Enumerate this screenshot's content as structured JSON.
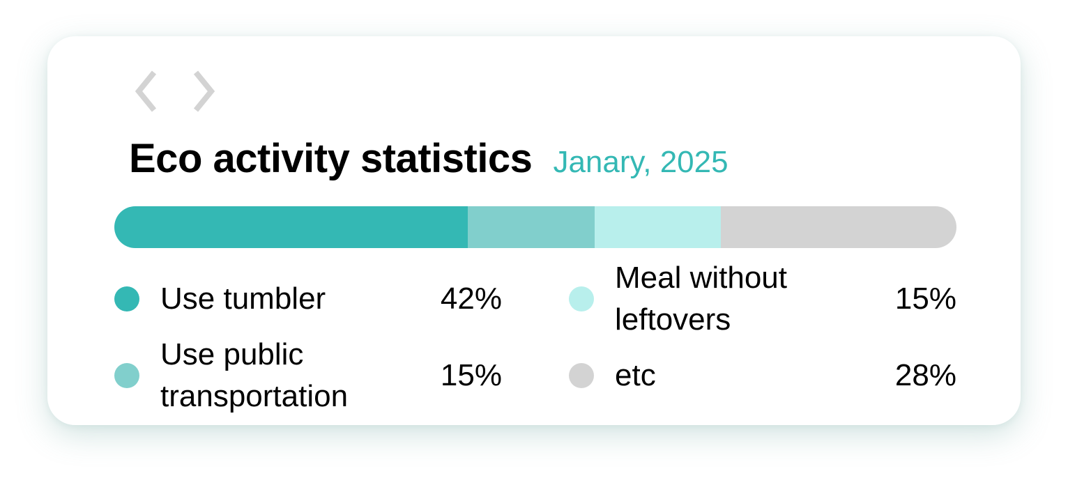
{
  "nav": {
    "prev_icon": "chevron-left-icon",
    "next_icon": "chevron-right-icon",
    "icon_color": "#d3d3d3"
  },
  "header": {
    "title": "Eco activity statistics",
    "date": "Janary, 2025",
    "date_color": "#34b8b4"
  },
  "chart_data": {
    "type": "bar",
    "title": "Eco activity statistics",
    "subtitle": "Janary, 2025",
    "stacked": true,
    "orientation": "horizontal",
    "unit": "%",
    "legend_position": "bottom",
    "categories": [
      "Use tumbler",
      "Use public transportation",
      "Meal without leftovers",
      "etc"
    ],
    "values": [
      42,
      15,
      15,
      28
    ],
    "value_labels": [
      "42%",
      "15%",
      "15%",
      "28%"
    ],
    "colors": [
      "#34b8b4",
      "#81cfcc",
      "#b8efec",
      "#d3d3d3"
    ]
  }
}
